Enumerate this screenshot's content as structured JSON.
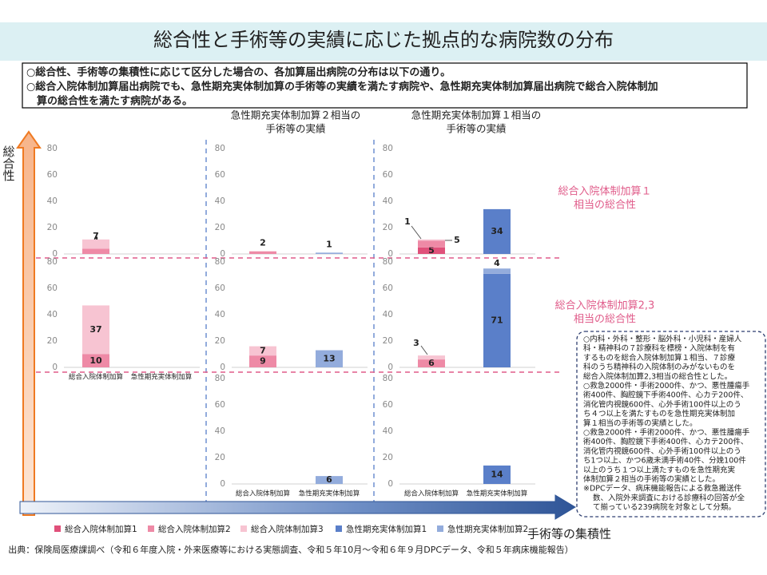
{
  "title": "総合性と手術等の実績に応じた拠点的な病院数の分布",
  "bullets": [
    "○総合性、手術等の集積性に応じて区分した場合の、各加算届出病院の分布は以下の通り。",
    "○総合入院体制加算届出病院でも、急性期充実体制加算の手術等の実績を満たす病院や、急性期充実体制加算届出病院で総合入院体制加",
    "算の総合性を満たす病院がある。"
  ],
  "column_headers": [
    [
      "急性期充実体制加算２相当の",
      "手術等の実績"
    ],
    [
      "急性期充実体制加算１相当の",
      "手術等の実績"
    ]
  ],
  "row_labels": [
    [
      "総合入院体制加算１",
      "相当の総合性"
    ],
    [
      "総合入院体制加算2,3",
      "相当の総合性"
    ]
  ],
  "y_axis_label": "総合性",
  "x_axis_label": "手術等の集積性",
  "legend": [
    {
      "name": "総合入院体制加算1",
      "color": "#e0507a"
    },
    {
      "name": "総合入院体制加算2",
      "color": "#ee8aa6"
    },
    {
      "name": "総合入院体制加算3",
      "color": "#f7c4d2"
    },
    {
      "name": "急性期充実体制加算1",
      "color": "#5a7fc9"
    },
    {
      "name": "急性期充実体制加算2",
      "color": "#93acdc"
    }
  ],
  "notes": [
    "○内科・外科・整形・脳外科・小児科・産婦人",
    "科・精神科の７診療科を標榜・入院体制を有",
    "するものを総合入院体制加算１相当、７診療",
    "科のうち精神科の入院体制のみがないものを",
    "総合入院体制加算2,3相当の総合性とした。",
    "○救急2000件・手術2000件、かつ、悪性腫瘍手",
    "術400件、胸腔鏡下手術400件、心カテ200件、",
    "消化管内視鏡600件、心外手術100件以上のう",
    "ち４つ以上を満たすものを急性期充実体制加",
    "算１相当の手術等の実績とした。",
    "○救急2000件・手術2000件、かつ、悪性腫瘍手",
    "術400件、胸腔鏡下手術400件、心カテ200件、",
    "消化管内視鏡600件、心外手術100件以上のう",
    "ち1つ以上、かつ6歳未満手術40件、分娩100件",
    "以上のうち１つ以上満たすものを急性期充実",
    "体制加算２相当の手術等の実績とした。",
    "※DPCデータ、病床機能報告による救急搬送件",
    "数、入院外来調査における診療科の回答が全",
    "て揃っている239病院を対象として分類。"
  ],
  "source": "出典：保険局医療課調べ（令和６年度入院・外来医療等における実態調査、令和５年10月～令和６年９月DPCデータ、令和５年病床機能報告）",
  "chart_data": [
    {
      "type": "bar",
      "stacked": true,
      "categories": [
        null,
        null
      ],
      "series": [
        {
          "values": [
            null,
            null
          ]
        },
        {
          "values": [
            4,
            null
          ]
        },
        {
          "values": [
            7,
            null
          ]
        },
        {
          "values": [
            null,
            null
          ]
        },
        {
          "values": [
            null,
            null
          ]
        }
      ],
      "ylim": [
        0,
        80
      ],
      "yticks": [
        0,
        20,
        40,
        60,
        80
      ]
    },
    {
      "type": "bar",
      "stacked": true,
      "categories": [
        null,
        null
      ],
      "series": [
        {
          "values": [
            null,
            null
          ]
        },
        {
          "values": [
            2,
            null
          ]
        },
        {
          "values": [
            null,
            null
          ]
        },
        {
          "values": [
            null,
            null
          ]
        },
        {
          "values": [
            null,
            1
          ]
        }
      ],
      "ylim": [
        0,
        80
      ],
      "yticks": [
        0,
        20,
        40,
        60,
        80
      ]
    },
    {
      "type": "bar",
      "stacked": true,
      "categories": [
        null,
        null
      ],
      "series": [
        {
          "values": [
            5,
            null
          ]
        },
        {
          "values": [
            5,
            null
          ]
        },
        {
          "values": [
            1,
            null
          ]
        },
        {
          "values": [
            null,
            34
          ]
        },
        {
          "values": [
            null,
            null
          ]
        }
      ],
      "ylim": [
        0,
        80
      ],
      "yticks": [
        0,
        20,
        40,
        60,
        80
      ]
    },
    {
      "type": "bar",
      "stacked": true,
      "categories": [
        "総合入院体制加算",
        "急性期充実体制加算"
      ],
      "series": [
        {
          "values": [
            null,
            null
          ]
        },
        {
          "values": [
            10,
            null
          ]
        },
        {
          "values": [
            37,
            null
          ]
        },
        {
          "values": [
            null,
            null
          ]
        },
        {
          "values": [
            null,
            null
          ]
        }
      ],
      "ylim": [
        0,
        80
      ],
      "yticks": [
        0,
        20,
        40,
        60,
        80
      ]
    },
    {
      "type": "bar",
      "stacked": true,
      "categories": [
        null,
        null
      ],
      "series": [
        {
          "values": [
            null,
            null
          ]
        },
        {
          "values": [
            9,
            null
          ]
        },
        {
          "values": [
            7,
            null
          ]
        },
        {
          "values": [
            null,
            null
          ]
        },
        {
          "values": [
            null,
            13
          ]
        }
      ],
      "ylim": [
        0,
        80
      ],
      "yticks": [
        0,
        20,
        40,
        60,
        80
      ]
    },
    {
      "type": "bar",
      "stacked": true,
      "categories": [
        null,
        null
      ],
      "series": [
        {
          "values": [
            null,
            null
          ]
        },
        {
          "values": [
            6,
            null
          ]
        },
        {
          "values": [
            3,
            null
          ]
        },
        {
          "values": [
            null,
            71
          ]
        },
        {
          "values": [
            null,
            4
          ]
        }
      ],
      "ylim": [
        0,
        80
      ],
      "yticks": [
        0,
        20,
        40,
        60,
        80
      ]
    },
    {
      "type": "bar",
      "stacked": true,
      "categories": [
        "総合入院体制加算",
        "急性期充実体制加算"
      ],
      "series": [
        {
          "values": [
            null,
            null
          ]
        },
        {
          "values": [
            null,
            null
          ]
        },
        {
          "values": [
            null,
            null
          ]
        },
        {
          "values": [
            null,
            null
          ]
        },
        {
          "values": [
            null,
            6
          ]
        }
      ],
      "ylim": [
        0,
        80
      ],
      "yticks": [
        0,
        20,
        40,
        60,
        80
      ]
    },
    {
      "type": "bar",
      "stacked": true,
      "categories": [
        "総合入院体制加算",
        "急性期充実体制加算"
      ],
      "series": [
        {
          "values": [
            null,
            null
          ]
        },
        {
          "values": [
            null,
            null
          ]
        },
        {
          "values": [
            null,
            null
          ]
        },
        {
          "values": [
            null,
            14
          ]
        },
        {
          "values": [
            null,
            null
          ]
        }
      ],
      "ylim": [
        0,
        80
      ],
      "yticks": [
        0,
        20,
        40,
        60,
        80
      ]
    }
  ]
}
